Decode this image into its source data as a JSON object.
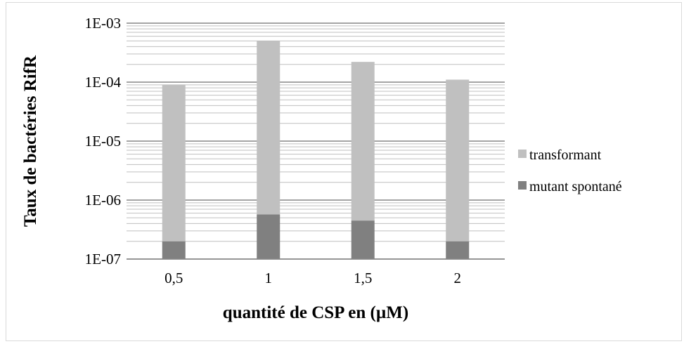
{
  "chart_data": {
    "type": "bar",
    "stacked": true,
    "yscale": "log",
    "categories": [
      "0,5",
      "1",
      "1,5",
      "2"
    ],
    "series": [
      {
        "name": "mutant spontané",
        "values": [
          2e-07,
          5.7e-07,
          4.5e-07,
          2e-07
        ],
        "color": "#808080"
      },
      {
        "name": "transformant",
        "values": [
          9e-05,
          0.0005,
          0.00022,
          0.00011
        ],
        "color": "#c0c0c0"
      }
    ],
    "ylim": [
      1e-07,
      0.001
    ],
    "yticks": [
      "1E-07",
      "1E-06",
      "1E-05",
      "1E-04",
      "1E-03"
    ],
    "xlabel": "quantité de CSP en (µM)",
    "ylabel": "Taux de bactéries RifR",
    "grid": true,
    "legend_position": "right"
  }
}
